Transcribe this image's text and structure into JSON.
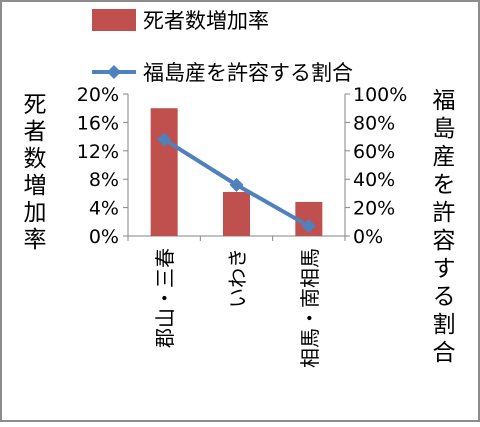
{
  "chart_data": {
    "type": "bar",
    "categories": [
      "郡山・三春",
      "いわき",
      "相馬・南相馬"
    ],
    "series": [
      {
        "name": "死者数増加率",
        "type": "bar",
        "axis": "left",
        "values": [
          18,
          6.2,
          4.8
        ],
        "color": "#c0504d"
      },
      {
        "name": "福島産を許容する割合",
        "type": "line",
        "axis": "right",
        "values": [
          68,
          36,
          7
        ],
        "color": "#4f81bd"
      }
    ],
    "ylabel": "死者数増加率",
    "y2label": "福島産を許容する割合",
    "ylim": [
      0,
      20
    ],
    "y2lim": [
      0,
      100
    ],
    "yticks": [
      "0%",
      "4%",
      "8%",
      "12%",
      "16%",
      "20%"
    ],
    "y2ticks": [
      "0%",
      "20%",
      "40%",
      "60%",
      "80%",
      "100%"
    ],
    "legend": "top",
    "grid": false
  }
}
